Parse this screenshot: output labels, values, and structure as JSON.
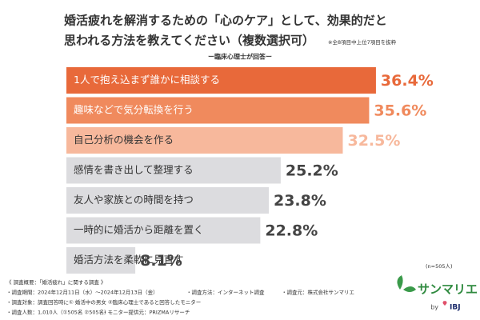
{
  "chart_data": {
    "type": "bar",
    "title": [
      "婚活疲れを解消するための「心のケア」として、効果的だと",
      "思われる方法を教えてください（複数選択可）"
    ],
    "note": "※全8項目中上位7項目を抜粋",
    "subtitle": "ー臨床心理士が回答ー",
    "categories": [
      "1人で抱え込まず誰かに相談する",
      "趣味などで気分転換を行う",
      "自己分析の機会を作る",
      "感情を書き出して整理する",
      "友人や家族との時間を持つ",
      "一時的に婚活から距離を置く",
      "婚活方法を柔軟に見直す"
    ],
    "values": [
      36.4,
      35.6,
      32.5,
      25.2,
      23.8,
      22.8,
      8.1
    ],
    "value_labels": [
      "36.4%",
      "35.6%",
      "32.5%",
      "25.2%",
      "23.8%",
      "22.8%",
      "8.1%"
    ],
    "colors": [
      "#e8693a",
      "#f08a5d",
      "#f7b89c",
      "#dcdcdf",
      "#dcdcdf",
      "#dcdcdf",
      "#dcdcdf"
    ],
    "sample_size": "(n=505人)",
    "survey": [
      [
        "《 調査概要：「婚活疲れ」に関する調査 》"
      ],
      [
        "・調査期間：2024年12月11日（水）～2024年12月13日（金）",
        "・調査方法：インターネット調査",
        "・調査元：株式会社サンマリエ"
      ],
      [
        "・調査対象：調査回答時に① 婚活中の男女 ②臨床心理士であると回答したモニター"
      ],
      [
        "・調査人数：1,010人（①505名 ②505名）",
        "・モニター提供元：PRIZMAリサーチ"
      ]
    ],
    "logo": "サンマリエ",
    "logo_by": "by",
    "logo_brand": "IBJ"
  }
}
